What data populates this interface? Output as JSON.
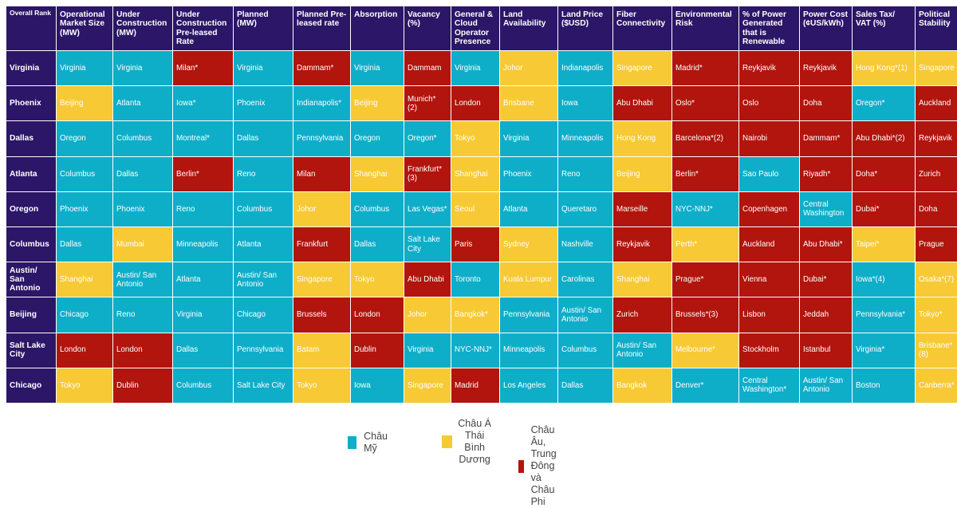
{
  "chart_data": {
    "type": "table",
    "colors": {
      "header": "#2b1667",
      "Châu Mỹ": "#0eaec9",
      "Châu Á Thái Bình Dương": "#f7c934",
      "Châu Âu, Trung Đông và Châu Phi": "#b1150d"
    },
    "legend": [
      {
        "region": "americas",
        "label": "Châu Mỹ"
      },
      {
        "region": "apac",
        "label": "Châu Á\nThái Bình\nDương"
      },
      {
        "region": "emea",
        "label": "Châu Âu, Trung\nĐông và Châu Phi"
      }
    ],
    "columns": [
      "Overall Rank",
      "Operational Market Size (MW)",
      "Under Construction (MW)",
      "Under Construction Pre-leased Rate",
      "Planned (MW)",
      "Planned Pre-leased rate",
      "Absorption",
      "Vacancy (%)",
      "General & Cloud Operator Presence",
      "Land Availability",
      "Land Price ($USD)",
      "Fiber Connectivity",
      "Environmental Risk",
      "% of Power Generated that is Renewable",
      "Power Cost (¢US/kWh)",
      "Sales Tax/ VAT (%)",
      "Political Stability"
    ],
    "rows": [
      {
        "rank": "Virginia",
        "cells": [
          [
            "Virginia",
            "americas"
          ],
          [
            "Virginia",
            "americas"
          ],
          [
            "Milan*",
            "emea"
          ],
          [
            "Virginia",
            "americas"
          ],
          [
            "Dammam*",
            "emea"
          ],
          [
            "Virginia",
            "americas"
          ],
          [
            "Dammam",
            "emea"
          ],
          [
            "Virginia",
            "americas"
          ],
          [
            "Johor",
            "apac"
          ],
          [
            "Indianapolis",
            "americas"
          ],
          [
            "Singapore",
            "apac"
          ],
          [
            "Madrid*",
            "emea"
          ],
          [
            "Reykjavik",
            "emea"
          ],
          [
            "Reykjavik",
            "emea"
          ],
          [
            "Hong Kong*(1)",
            "apac"
          ],
          [
            "Singapore",
            "apac"
          ]
        ]
      },
      {
        "rank": "Phoenix",
        "cells": [
          [
            "Beijing",
            "apac"
          ],
          [
            "Atlanta",
            "americas"
          ],
          [
            "Iowa*",
            "americas"
          ],
          [
            "Phoenix",
            "americas"
          ],
          [
            "Indianapolis*",
            "americas"
          ],
          [
            "Beijing",
            "apac"
          ],
          [
            "Munich* (2)",
            "emea"
          ],
          [
            "London",
            "emea"
          ],
          [
            "Brisbane",
            "apac"
          ],
          [
            "Iowa",
            "americas"
          ],
          [
            "Abu Dhabi",
            "emea"
          ],
          [
            "Oslo*",
            "emea"
          ],
          [
            "Oslo",
            "emea"
          ],
          [
            "Doha",
            "emea"
          ],
          [
            "Oregon*",
            "americas"
          ],
          [
            "Auckland",
            "emea"
          ]
        ]
      },
      {
        "rank": "Dallas",
        "cells": [
          [
            "Oregon",
            "americas"
          ],
          [
            "Columbus",
            "americas"
          ],
          [
            "Montreal*",
            "americas"
          ],
          [
            "Dallas",
            "americas"
          ],
          [
            "Pennsylvania",
            "americas"
          ],
          [
            "Oregon",
            "americas"
          ],
          [
            "Oregon*",
            "americas"
          ],
          [
            "Tokyo",
            "apac"
          ],
          [
            "Virginia",
            "americas"
          ],
          [
            "Minneapolis",
            "americas"
          ],
          [
            "Hong Kong",
            "apac"
          ],
          [
            "Barcelona*(2)",
            "emea"
          ],
          [
            "Nairobi",
            "emea"
          ],
          [
            "Dammam*",
            "emea"
          ],
          [
            "Abu Dhabi*(2)",
            "emea"
          ],
          [
            "Reykjavik",
            "emea"
          ]
        ]
      },
      {
        "rank": "Atlanta",
        "cells": [
          [
            "Columbus",
            "americas"
          ],
          [
            "Dallas",
            "americas"
          ],
          [
            "Berlin*",
            "emea"
          ],
          [
            "Reno",
            "americas"
          ],
          [
            "Milan",
            "emea"
          ],
          [
            "Shanghai",
            "apac"
          ],
          [
            "Frankfurt* (3)",
            "emea"
          ],
          [
            "Shanghai",
            "apac"
          ],
          [
            "Phoenix",
            "americas"
          ],
          [
            "Reno",
            "americas"
          ],
          [
            "Beijing",
            "apac"
          ],
          [
            "Berlin*",
            "emea"
          ],
          [
            "Sao Paulo",
            "americas"
          ],
          [
            "Riyadh*",
            "emea"
          ],
          [
            "Doha*",
            "emea"
          ],
          [
            "Zurich",
            "emea"
          ]
        ]
      },
      {
        "rank": "Oregon",
        "cells": [
          [
            "Phoenix",
            "americas"
          ],
          [
            "Phoenix",
            "americas"
          ],
          [
            "Reno",
            "americas"
          ],
          [
            "Columbus",
            "americas"
          ],
          [
            "Johor",
            "apac"
          ],
          [
            "Columbus",
            "americas"
          ],
          [
            "Las Vegas*",
            "americas"
          ],
          [
            "Seoul",
            "apac"
          ],
          [
            "Atlanta",
            "americas"
          ],
          [
            "Queretaro",
            "americas"
          ],
          [
            "Marseille",
            "emea"
          ],
          [
            "NYC-NNJ*",
            "americas"
          ],
          [
            "Copenhagen",
            "emea"
          ],
          [
            "Central Washington",
            "americas"
          ],
          [
            "Dubai*",
            "emea"
          ],
          [
            "Doha",
            "emea"
          ]
        ]
      },
      {
        "rank": "Columbus",
        "cells": [
          [
            "Dallas",
            "americas"
          ],
          [
            "Mumbai",
            "apac"
          ],
          [
            "Minneapolis",
            "americas"
          ],
          [
            "Atlanta",
            "americas"
          ],
          [
            "Frankfurt",
            "emea"
          ],
          [
            "Dallas",
            "americas"
          ],
          [
            "Salt Lake City",
            "americas"
          ],
          [
            "Paris",
            "emea"
          ],
          [
            "Sydney",
            "apac"
          ],
          [
            "Nashville",
            "americas"
          ],
          [
            "Reykjavik",
            "emea"
          ],
          [
            "Perth*",
            "apac"
          ],
          [
            "Auckland",
            "emea"
          ],
          [
            "Abu Dhabi*",
            "emea"
          ],
          [
            "Taipei*",
            "apac"
          ],
          [
            "Prague",
            "emea"
          ]
        ]
      },
      {
        "rank": "Austin/ San Antonio",
        "cells": [
          [
            "Shanghai",
            "apac"
          ],
          [
            "Austin/ San Antonio",
            "americas"
          ],
          [
            "Atlanta",
            "americas"
          ],
          [
            "Austin/ San Antonio",
            "americas"
          ],
          [
            "Singapore",
            "apac"
          ],
          [
            "Tokyo",
            "apac"
          ],
          [
            "Abu Dhabi",
            "emea"
          ],
          [
            "Toronto",
            "americas"
          ],
          [
            "Kuala Lumpur",
            "apac"
          ],
          [
            "Carolinas",
            "americas"
          ],
          [
            "Shanghai",
            "apac"
          ],
          [
            "Prague*",
            "emea"
          ],
          [
            "Vienna",
            "emea"
          ],
          [
            "Dubai*",
            "emea"
          ],
          [
            "Iowa*(4)",
            "americas"
          ],
          [
            "Osaka*(7)",
            "apac"
          ]
        ]
      },
      {
        "rank": "Beijing",
        "cells": [
          [
            "Chicago",
            "americas"
          ],
          [
            "Reno",
            "americas"
          ],
          [
            "Virginia",
            "americas"
          ],
          [
            "Chicago",
            "americas"
          ],
          [
            "Brussels",
            "emea"
          ],
          [
            "London",
            "emea"
          ],
          [
            "Johor",
            "apac"
          ],
          [
            "Bangkok*",
            "apac"
          ],
          [
            "Pennsylvania",
            "americas"
          ],
          [
            "Austin/ San Antonio",
            "americas"
          ],
          [
            "Zurich",
            "emea"
          ],
          [
            "Brussels*(3)",
            "emea"
          ],
          [
            "Lisbon",
            "emea"
          ],
          [
            "Jeddah",
            "emea"
          ],
          [
            "Pennsylvania*",
            "americas"
          ],
          [
            "Tokyo*",
            "apac"
          ]
        ]
      },
      {
        "rank": "Salt Lake City",
        "cells": [
          [
            "London",
            "emea"
          ],
          [
            "London",
            "emea"
          ],
          [
            "Dallas",
            "americas"
          ],
          [
            "Pennsylvania",
            "americas"
          ],
          [
            "Batam",
            "apac"
          ],
          [
            "Dublin",
            "emea"
          ],
          [
            "Virginia",
            "americas"
          ],
          [
            "NYC-NNJ*",
            "americas"
          ],
          [
            "Minneapolis",
            "americas"
          ],
          [
            "Columbus",
            "americas"
          ],
          [
            "Austin/ San Antonio",
            "americas"
          ],
          [
            "Melbourne*",
            "apac"
          ],
          [
            "Stockholm",
            "emea"
          ],
          [
            "Istanbul",
            "emea"
          ],
          [
            "Virginia*",
            "americas"
          ],
          [
            "Brisbane* (8)",
            "apac"
          ]
        ]
      },
      {
        "rank": "Chicago",
        "cells": [
          [
            "Tokyo",
            "apac"
          ],
          [
            "Dublin",
            "emea"
          ],
          [
            "Columbus",
            "americas"
          ],
          [
            "Salt Lake City",
            "americas"
          ],
          [
            "Tokyo",
            "apac"
          ],
          [
            "Iowa",
            "americas"
          ],
          [
            "Singapore",
            "apac"
          ],
          [
            "Madrid",
            "emea"
          ],
          [
            "Los Angeles",
            "americas"
          ],
          [
            "Dallas",
            "americas"
          ],
          [
            "Bangkok",
            "apac"
          ],
          [
            "Denver*",
            "americas"
          ],
          [
            "Central Washington*",
            "americas"
          ],
          [
            "Austin/ San Antonio",
            "americas"
          ],
          [
            "Boston",
            "americas"
          ],
          [
            "Canberra*",
            "apac"
          ]
        ]
      }
    ]
  }
}
